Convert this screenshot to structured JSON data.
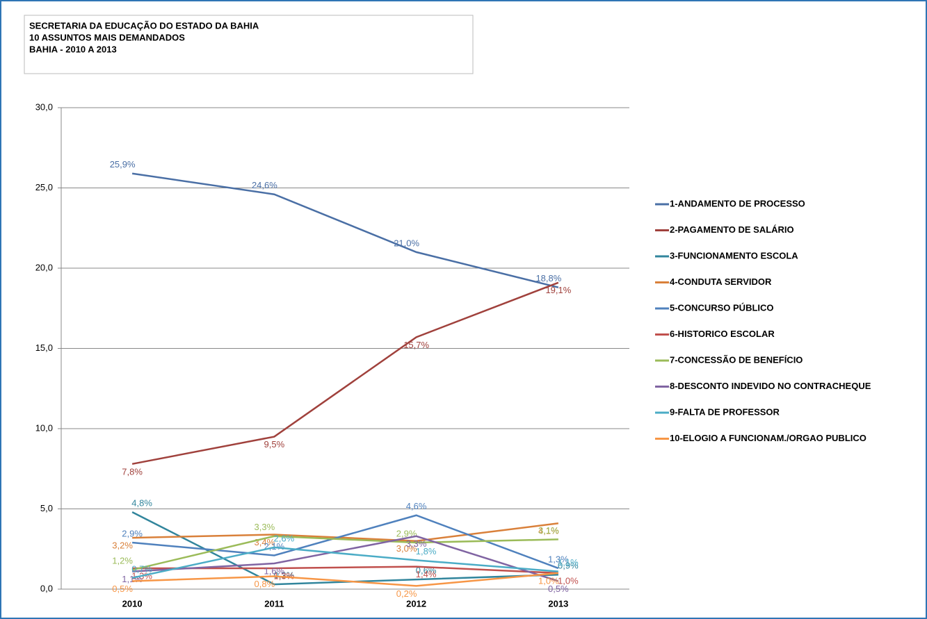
{
  "chart_data": {
    "type": "line",
    "title": "SECRETARIA DA EDUCAÇÃO DO ESTADO DA BAHIA",
    "subtitle": [
      "10 ASSUNTOS MAIS DEMANDADOS",
      "BAHIA - 2010 A 2013"
    ],
    "categories": [
      "2010",
      "2011",
      "2012",
      "2013"
    ],
    "ylim": [
      0,
      30
    ],
    "yticks": [
      {
        "value": 0,
        "label": "0,0"
      },
      {
        "value": 5,
        "label": "5,0"
      },
      {
        "value": 10,
        "label": "10,0"
      },
      {
        "value": 15,
        "label": "15,0"
      },
      {
        "value": 20,
        "label": "20,0"
      },
      {
        "value": 25,
        "label": "25,0"
      },
      {
        "value": 30,
        "label": "30,0"
      }
    ],
    "grid": true,
    "legend": "right",
    "series": [
      {
        "name": "1-ANDAMENTO DE PROCESSO",
        "color": "#4a6fa5",
        "values": [
          25.9,
          24.6,
          21.0,
          18.8
        ],
        "value_labels": [
          "25,9%",
          "24,6%",
          "21,0%",
          "18,8%"
        ]
      },
      {
        "name": "2-PAGAMENTO DE SALÁRIO",
        "color": "#a0413c",
        "values": [
          7.8,
          9.5,
          15.7,
          19.1
        ],
        "value_labels": [
          "7,8%",
          "9,5%",
          "15,7%",
          "19,1%"
        ]
      },
      {
        "name": "3-FUNCIONAMENTO ESCOLA",
        "color": "#31859c",
        "values": [
          4.8,
          0.3,
          0.6,
          0.9
        ],
        "value_labels": [
          "4,8%",
          "0,3%",
          "0,6%",
          "0,9%"
        ]
      },
      {
        "name": "4-CONDUTA SERVIDOR",
        "color": "#d9803a",
        "values": [
          3.2,
          3.4,
          3.0,
          4.1
        ],
        "value_labels": [
          "3,2%",
          "3,4%",
          "3,0%",
          "4,1%"
        ]
      },
      {
        "name": "5-CONCURSO PÚBLICO",
        "color": "#4f81bd",
        "values": [
          2.9,
          2.1,
          4.6,
          1.3
        ],
        "value_labels": [
          "2,9%",
          "2,1%",
          "4,6%",
          "1,3%"
        ]
      },
      {
        "name": "6-HISTORICO ESCOLAR",
        "color": "#c0504d",
        "values": [
          1.3,
          1.3,
          1.4,
          1.0
        ],
        "value_labels": [
          "1,3%",
          "1,3%",
          "1,4%",
          "1,0%"
        ]
      },
      {
        "name": "7-CONCESSÃO DE BENEFÍCIO",
        "color": "#9bbb59",
        "values": [
          1.2,
          3.3,
          2.9,
          3.1
        ],
        "value_labels": [
          "1,2%",
          "3,3%",
          "2,9%",
          "3,1%"
        ]
      },
      {
        "name": "8-DESCONTO INDEVIDO NO CONTRACHEQUE",
        "color": "#8064a2",
        "values": [
          1.1,
          1.6,
          3.3,
          0.5
        ],
        "value_labels": [
          "1,1%",
          "1,6%",
          "3,3%",
          "0,5%"
        ]
      },
      {
        "name": "9-FALTA DE PROFESSOR",
        "color": "#4bacc6",
        "values": [
          0.7,
          2.6,
          1.8,
          1.1
        ],
        "value_labels": [
          "0,7%",
          "2,6%",
          "1,8%",
          "1,1%"
        ]
      },
      {
        "name": "10-ELOGIO A FUNCIONAM./ORGAO PUBLICO",
        "color": "#f79646",
        "values": [
          0.5,
          0.8,
          0.2,
          1.0
        ],
        "value_labels": [
          "0,5%",
          "0,8%",
          "0,2%",
          "1,0%"
        ]
      }
    ]
  }
}
